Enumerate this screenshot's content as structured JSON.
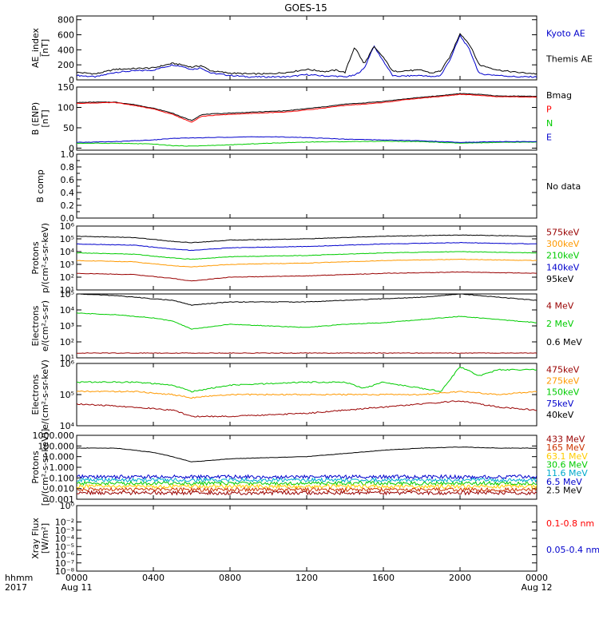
{
  "title": "GOES-15",
  "x_axis": {
    "label_line1": "hhmm",
    "label_line2": "2017",
    "ticks": [
      "0000",
      "0400",
      "0800",
      "1200",
      "1600",
      "2000",
      "0000"
    ],
    "tick_hours": [
      0,
      4,
      8,
      12,
      16,
      20,
      24
    ],
    "date_labels": [
      "Aug 11",
      "Aug 12"
    ]
  },
  "chart_data": [
    {
      "type": "line",
      "panel": "ae",
      "ylabel": "AE_index [nT]",
      "ylabel_lines": [
        "AE_index",
        "[nT]"
      ],
      "yticks": [
        "0",
        "200",
        "400",
        "600",
        "800"
      ],
      "ylim": [
        0,
        850
      ],
      "scale": "linear",
      "legend": [
        {
          "text": "Kyoto AE",
          "color": "#0000cc"
        },
        {
          "text": "Themis AE",
          "color": "#000000"
        }
      ],
      "series": [
        {
          "name": "Kyoto AE",
          "color": "#0000cc",
          "x": [
            0,
            1,
            2,
            3,
            4,
            5,
            5.5,
            6,
            6.5,
            7,
            8,
            9,
            10,
            11,
            12,
            13,
            13.5,
            14,
            14.5,
            15,
            15.5,
            16,
            16.5,
            17,
            18,
            18.5,
            19,
            19.5,
            20,
            20.5,
            21,
            22,
            23,
            24
          ],
          "y": [
            60,
            40,
            100,
            120,
            130,
            200,
            180,
            140,
            160,
            90,
            60,
            40,
            40,
            40,
            70,
            50,
            50,
            40,
            60,
            150,
            450,
            250,
            50,
            50,
            60,
            40,
            60,
            280,
            590,
            400,
            80,
            60,
            40,
            40
          ]
        },
        {
          "name": "Themis AE",
          "color": "#000000",
          "x": [
            0,
            1,
            2,
            3,
            4,
            5,
            5.5,
            6,
            6.5,
            7,
            8,
            9,
            10,
            11,
            12,
            13,
            13.5,
            14,
            14.5,
            15,
            15.5,
            16,
            16.5,
            17,
            18,
            18.5,
            19,
            19.5,
            20,
            20.5,
            21,
            22,
            23,
            24
          ],
          "y": [
            100,
            80,
            140,
            150,
            160,
            220,
            200,
            170,
            190,
            120,
            90,
            80,
            80,
            100,
            140,
            110,
            130,
            100,
            440,
            210,
            440,
            300,
            110,
            120,
            130,
            90,
            120,
            320,
            620,
            470,
            200,
            130,
            100,
            80
          ]
        }
      ]
    },
    {
      "type": "line",
      "panel": "bfield",
      "ylabel": "B (ENP) [nT]",
      "ylabel_lines": [
        "B (ENP)",
        "[nT]"
      ],
      "yticks": [
        "0",
        "50",
        "100",
        "150"
      ],
      "ylim": [
        -5,
        150
      ],
      "scale": "linear",
      "legend": [
        {
          "text": "Bmag",
          "color": "#000000"
        },
        {
          "text": "P",
          "color": "#ff0000"
        },
        {
          "text": "N",
          "color": "#00cc00"
        },
        {
          "text": "E",
          "color": "#0000cc"
        }
      ],
      "series": [
        {
          "name": "Bmag",
          "color": "#000000",
          "x": [
            0,
            1,
            2,
            3,
            4,
            5,
            5.5,
            6,
            6.5,
            7,
            8,
            9,
            10,
            11,
            12,
            13,
            14,
            15,
            16,
            17,
            18,
            19,
            20,
            21,
            22,
            23,
            24
          ],
          "y": [
            112,
            113,
            113,
            107,
            98,
            86,
            76,
            68,
            82,
            84,
            86,
            88,
            90,
            92,
            97,
            102,
            108,
            111,
            115,
            120,
            125,
            129,
            134,
            132,
            128,
            128,
            127
          ]
        },
        {
          "name": "P",
          "color": "#ff0000",
          "x": [
            0,
            1,
            2,
            3,
            4,
            5,
            5.5,
            6,
            6.5,
            7,
            8,
            9,
            10,
            11,
            12,
            13,
            14,
            15,
            16,
            17,
            18,
            19,
            20,
            21,
            22,
            23,
            24
          ],
          "y": [
            110,
            111,
            112,
            105,
            96,
            83,
            73,
            64,
            78,
            80,
            83,
            85,
            87,
            89,
            94,
            99,
            105,
            108,
            112,
            118,
            123,
            127,
            132,
            130,
            126,
            126,
            125
          ]
        },
        {
          "name": "N",
          "color": "#00cc00",
          "x": [
            0,
            2,
            4,
            5,
            6,
            8,
            10,
            12,
            14,
            16,
            18,
            20,
            22,
            24
          ],
          "y": [
            12,
            12,
            10,
            6,
            5,
            8,
            12,
            15,
            16,
            17,
            16,
            12,
            14,
            15
          ]
        },
        {
          "name": "E",
          "color": "#0000cc",
          "x": [
            0,
            2,
            4,
            5,
            6,
            8,
            10,
            12,
            14,
            16,
            18,
            20,
            22,
            24
          ],
          "y": [
            14,
            16,
            20,
            24,
            25,
            27,
            28,
            26,
            22,
            20,
            18,
            14,
            16,
            16
          ]
        }
      ]
    },
    {
      "type": "line",
      "panel": "bcomp",
      "ylabel": "B comp",
      "ylabel_lines": [
        "B comp"
      ],
      "yticks": [
        "0.0",
        "0.2",
        "0.4",
        "0.6",
        "0.8",
        "1.0"
      ],
      "ylim": [
        0,
        1.0
      ],
      "minor_ticks": 9,
      "scale": "linear",
      "legend": [
        {
          "text": "No data",
          "color": "#000000"
        }
      ],
      "series": []
    },
    {
      "type": "line",
      "panel": "mag_protons",
      "ylabel": "Protons p/(cm²-s-sr-keV)",
      "ylabel_lines": [
        "Protons",
        "p/(cm²-s-sr-keV)"
      ],
      "yticks": [
        "10¹",
        "10²",
        "10³",
        "10⁴",
        "10⁵",
        "10⁶"
      ],
      "ylim": [
        1,
        6
      ],
      "scale": "log",
      "legend": [
        {
          "text": "575keV",
          "color": "#990000"
        },
        {
          "text": "300keV",
          "color": "#ff9900"
        },
        {
          "text": "210keV",
          "color": "#00cc00"
        },
        {
          "text": "140keV",
          "color": "#0000cc"
        },
        {
          "text": "95keV",
          "color": "#000000"
        }
      ],
      "series": [
        {
          "name": "95keV",
          "color": "#000000",
          "x": [
            0,
            3,
            5,
            6,
            8,
            12,
            16,
            20,
            24
          ],
          "y": [
            5.2,
            5.1,
            4.8,
            4.7,
            4.9,
            5.0,
            5.2,
            5.3,
            5.2
          ]
        },
        {
          "name": "140keV",
          "color": "#0000cc",
          "x": [
            0,
            3,
            5,
            6,
            8,
            12,
            16,
            20,
            24
          ],
          "y": [
            4.6,
            4.5,
            4.2,
            4.1,
            4.3,
            4.4,
            4.6,
            4.7,
            4.6
          ]
        },
        {
          "name": "210keV",
          "color": "#00cc00",
          "x": [
            0,
            3,
            5,
            6,
            8,
            12,
            16,
            20,
            24
          ],
          "y": [
            3.9,
            3.8,
            3.5,
            3.4,
            3.6,
            3.7,
            3.9,
            4.0,
            3.9
          ]
        },
        {
          "name": "300keV",
          "color": "#ff9900",
          "x": [
            0,
            3,
            5,
            6,
            8,
            12,
            16,
            20,
            24
          ],
          "y": [
            3.3,
            3.2,
            2.9,
            2.8,
            3.0,
            3.1,
            3.3,
            3.4,
            3.3
          ]
        },
        {
          "name": "575keV",
          "color": "#990000",
          "x": [
            0,
            3,
            5,
            6,
            8,
            12,
            16,
            20,
            24
          ],
          "y": [
            2.3,
            2.2,
            1.9,
            1.7,
            2.0,
            2.1,
            2.3,
            2.4,
            2.3
          ]
        }
      ]
    },
    {
      "type": "line",
      "panel": "hi_electrons",
      "ylabel": "Electrons e/(cm²-s-sr)",
      "ylabel_lines": [
        "Electrons",
        "e/(cm²-s-sr)"
      ],
      "yticks": [
        "10¹",
        "10²",
        "10³",
        "10⁴",
        "10⁵"
      ],
      "ylim": [
        1,
        5
      ],
      "scale": "log",
      "legend": [
        {
          "text": "4 MeV",
          "color": "#990000"
        },
        {
          "text": "2 MeV",
          "color": "#00cc00"
        },
        {
          "text": "0.6 MeV",
          "color": "#000000"
        }
      ],
      "series": [
        {
          "name": "0.6 MeV",
          "color": "#000000",
          "x": [
            0,
            2,
            4,
            5,
            6,
            8,
            10,
            12,
            14,
            16,
            18,
            20,
            22,
            24
          ],
          "y": [
            5.0,
            4.9,
            4.7,
            4.6,
            4.3,
            4.5,
            4.5,
            4.5,
            4.6,
            4.7,
            4.8,
            5.0,
            4.8,
            4.6
          ]
        },
        {
          "name": "2 MeV",
          "color": "#00cc00",
          "x": [
            0,
            2,
            4,
            5,
            6,
            8,
            10,
            12,
            14,
            16,
            18,
            20,
            22,
            24
          ],
          "y": [
            3.8,
            3.7,
            3.5,
            3.3,
            2.8,
            3.1,
            3.0,
            2.9,
            3.1,
            3.2,
            3.4,
            3.6,
            3.4,
            3.2
          ]
        },
        {
          "name": "4 MeV",
          "color": "#990000",
          "x": [
            0,
            4,
            8,
            12,
            16,
            20,
            24
          ],
          "y": [
            1.3,
            1.3,
            1.3,
            1.3,
            1.3,
            1.3,
            1.3
          ]
        }
      ]
    },
    {
      "type": "line",
      "panel": "mag_electrons",
      "ylabel": "Electrons e/(cm²-s-sr-keV)",
      "ylabel_lines": [
        "Electrons",
        "e/(cm²-s-sr-keV)"
      ],
      "yticks": [
        "10⁴",
        "10⁵",
        "10⁶"
      ],
      "ylim": [
        4,
        6
      ],
      "scale": "log",
      "legend": [
        {
          "text": "475keV",
          "color": "#990000"
        },
        {
          "text": "275keV",
          "color": "#ff9900"
        },
        {
          "text": "150keV",
          "color": "#00cc00"
        },
        {
          "text": "75keV",
          "color": "#0000cc"
        },
        {
          "text": "40keV",
          "color": "#000000"
        }
      ],
      "series": [
        {
          "name": "150keV",
          "color": "#00cc00",
          "x": [
            0,
            3,
            5,
            6,
            8,
            12,
            14,
            15,
            16,
            18,
            19,
            20,
            21,
            22,
            24
          ],
          "y": [
            5.4,
            5.4,
            5.3,
            5.1,
            5.3,
            5.4,
            5.4,
            5.2,
            5.4,
            5.2,
            5.1,
            5.9,
            5.6,
            5.8,
            5.8
          ]
        },
        {
          "name": "275keV",
          "color": "#ff9900",
          "x": [
            0,
            3,
            5,
            6,
            8,
            12,
            16,
            18,
            20,
            22,
            24
          ],
          "y": [
            5.1,
            5.1,
            5.0,
            4.9,
            5.0,
            5.0,
            5.0,
            5.0,
            5.1,
            5.0,
            5.1
          ]
        },
        {
          "name": "475keV",
          "color": "#990000",
          "x": [
            0,
            3,
            5,
            6,
            8,
            12,
            16,
            18,
            20,
            22,
            24
          ],
          "y": [
            4.7,
            4.6,
            4.5,
            4.3,
            4.3,
            4.4,
            4.6,
            4.7,
            4.8,
            4.6,
            4.5
          ]
        }
      ]
    },
    {
      "type": "line",
      "panel": "eps_protons",
      "ylabel": "Protons [p/(cm²-s-sr-keV)]",
      "ylabel_lines": [
        "Protons",
        "[p/(cm²-s-sr-keV)]"
      ],
      "yticks": [
        "0.001",
        "0.010",
        "0.100",
        "1.000",
        "10.000",
        "100.000",
        "1000.000"
      ],
      "ylim": [
        -3,
        3
      ],
      "scale": "log",
      "legend": [
        {
          "text": "433 MeV",
          "color": "#990000"
        },
        {
          "text": "165 MeV",
          "color": "#cc3300"
        },
        {
          "text": "63.1 MeV",
          "color": "#ffcc00"
        },
        {
          "text": "30.6 MeV",
          "color": "#00cc00"
        },
        {
          "text": "11.6 MeV",
          "color": "#00aacc"
        },
        {
          "text": "6.5 MeV",
          "color": "#0000cc"
        },
        {
          "text": "2.5 MeV",
          "color": "#000000"
        }
      ],
      "series": [
        {
          "name": "2.5 MeV",
          "color": "#000000",
          "x": [
            0,
            2,
            4,
            5,
            6,
            8,
            10,
            12,
            14,
            16,
            18,
            20,
            22,
            24
          ],
          "y": [
            1.8,
            1.8,
            1.4,
            1.0,
            0.5,
            0.8,
            0.9,
            1.0,
            1.3,
            1.6,
            1.8,
            1.9,
            1.8,
            1.8
          ]
        }
      ]
    },
    {
      "type": "line",
      "panel": "xray",
      "ylabel": "Xray Flux [W/m²]",
      "ylabel_lines": [
        "Xray Flux",
        "[W/m²]"
      ],
      "yticks": [
        "10⁻⁸",
        "10⁻⁷",
        "10⁻⁶",
        "10⁻⁵",
        "10⁻⁴",
        "10⁻³",
        "10⁻²",
        "10⁰"
      ],
      "ylim": [
        -8,
        0
      ],
      "scale": "log",
      "legend": [
        {
          "text": "0.1-0.8 nm",
          "color": "#ff0000"
        },
        {
          "text": "0.05-0.4 nm",
          "color": "#0000cc"
        }
      ],
      "series": []
    }
  ]
}
